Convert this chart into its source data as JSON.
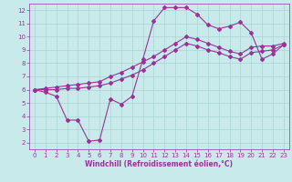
{
  "title": "",
  "xlabel": "Windchill (Refroidissement éolien,°C)",
  "ylabel": "",
  "bg_color": "#c8eaea",
  "grid_color": "#aad4d4",
  "line_color": "#993399",
  "marker": "D",
  "markersize": 2,
  "linewidth": 0.8,
  "xlim": [
    -0.5,
    23.5
  ],
  "ylim": [
    1.5,
    12.5
  ],
  "xticks": [
    0,
    1,
    2,
    3,
    4,
    5,
    6,
    7,
    8,
    9,
    10,
    11,
    12,
    13,
    14,
    15,
    16,
    17,
    18,
    19,
    20,
    21,
    22,
    23
  ],
  "yticks": [
    2,
    3,
    4,
    5,
    6,
    7,
    8,
    9,
    10,
    11,
    12
  ],
  "curve1_x": [
    0,
    1,
    2,
    3,
    4,
    5,
    6,
    7,
    8,
    9,
    10,
    11,
    12,
    13,
    14,
    15,
    16,
    17,
    18,
    19,
    20,
    21,
    22,
    23
  ],
  "curve1_y": [
    6.0,
    5.8,
    5.5,
    3.7,
    3.7,
    2.1,
    2.2,
    5.3,
    4.9,
    5.5,
    8.3,
    11.2,
    12.2,
    12.2,
    12.2,
    11.7,
    10.9,
    10.6,
    10.8,
    11.1,
    10.3,
    8.3,
    8.7,
    9.4
  ],
  "curve2_x": [
    0,
    1,
    2,
    3,
    4,
    5,
    6,
    7,
    8,
    9,
    10,
    11,
    12,
    13,
    14,
    15,
    16,
    17,
    18,
    19,
    20,
    21,
    22,
    23
  ],
  "curve2_y": [
    6.0,
    6.0,
    6.0,
    6.1,
    6.1,
    6.2,
    6.3,
    6.5,
    6.8,
    7.1,
    7.5,
    8.0,
    8.5,
    9.0,
    9.5,
    9.3,
    9.0,
    8.8,
    8.5,
    8.3,
    8.8,
    8.9,
    9.0,
    9.4
  ],
  "curve3_x": [
    0,
    1,
    2,
    3,
    4,
    5,
    6,
    7,
    8,
    9,
    10,
    11,
    12,
    13,
    14,
    15,
    16,
    17,
    18,
    19,
    20,
    21,
    22,
    23
  ],
  "curve3_y": [
    6.0,
    6.1,
    6.2,
    6.3,
    6.4,
    6.5,
    6.6,
    7.0,
    7.3,
    7.7,
    8.1,
    8.5,
    9.0,
    9.5,
    10.0,
    9.8,
    9.5,
    9.2,
    8.9,
    8.7,
    9.2,
    9.3,
    9.3,
    9.5
  ],
  "xlabel_fontsize": 5.5,
  "tick_fontsize": 5
}
